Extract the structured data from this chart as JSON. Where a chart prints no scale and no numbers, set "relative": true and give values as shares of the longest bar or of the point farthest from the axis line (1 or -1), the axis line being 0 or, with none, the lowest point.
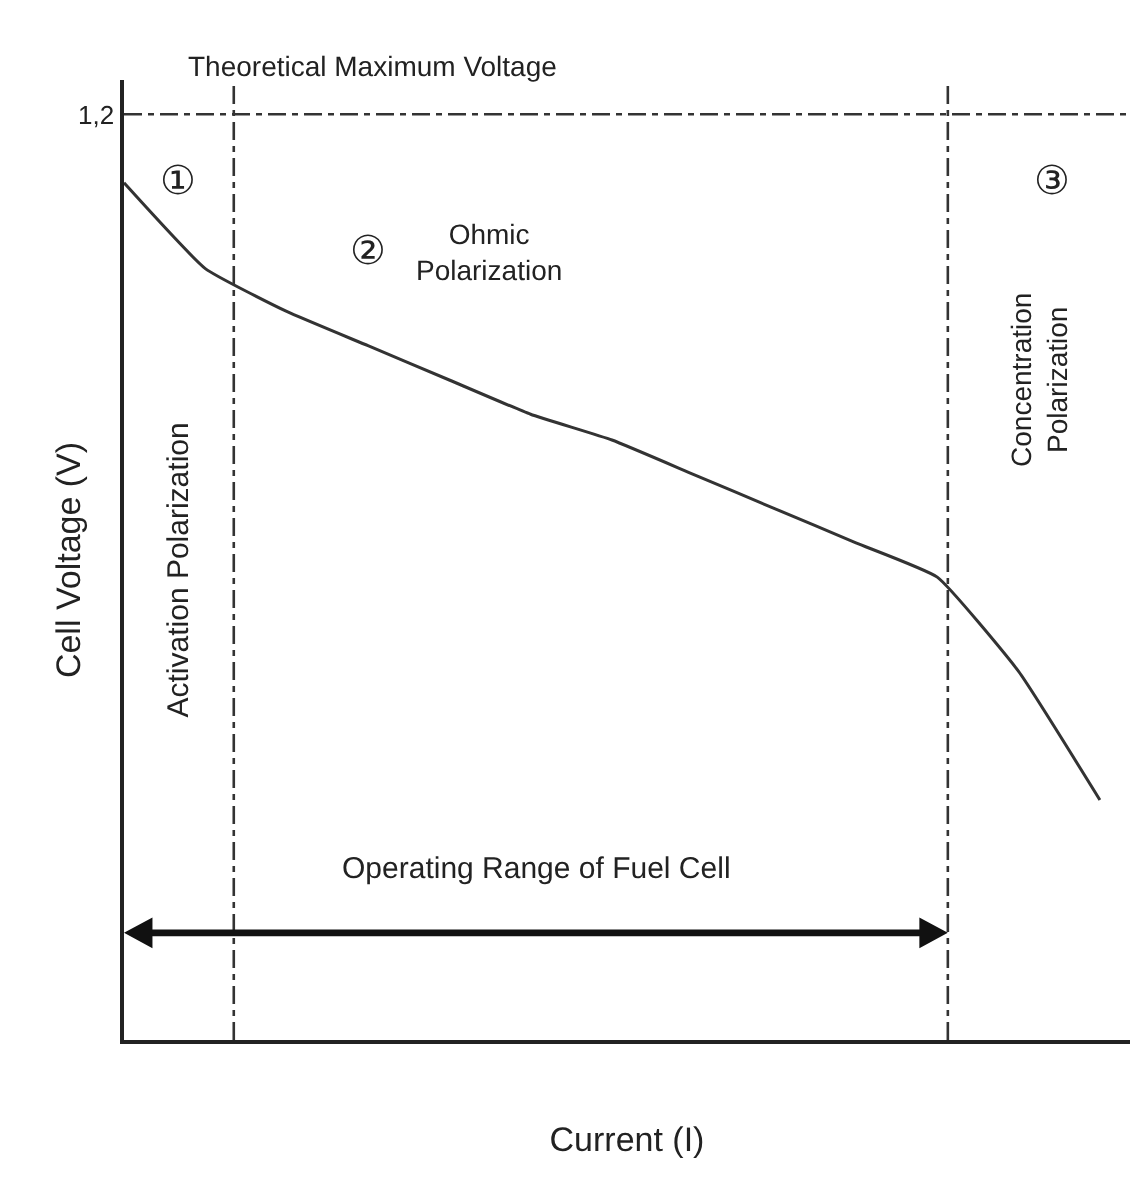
{
  "chart_data": {
    "type": "line",
    "relative": true,
    "xlabel": "Current (I)",
    "ylabel": "Cell Voltage (V)",
    "categories": [
      null,
      null,
      null,
      null,
      null,
      null,
      null,
      null,
      null,
      null,
      null,
      null,
      null
    ],
    "series": [
      {
        "color": "#333333",
        "values": [
          1,
          0.9,
          0.85,
          0.81,
          0.77,
          0.73,
          0.7,
          0.66,
          0.62,
          0.58,
          0.54,
          0.43,
          0.28
        ]
      }
    ],
    "ref_lines": [
      {
        "axis": "y",
        "value": 1.08,
        "line_style": "dashed",
        "color": "#333333"
      }
    ],
    "annotations": [
      "1,2",
      "Theoretical Maximum Voltage",
      "①",
      "Activation Polarization",
      "②",
      "Ohmic Polarization",
      "③",
      "Concentration Polarization",
      "Operating Range of Fuel Cell"
    ],
    "marker": "none",
    "line_style": "solid"
  }
}
